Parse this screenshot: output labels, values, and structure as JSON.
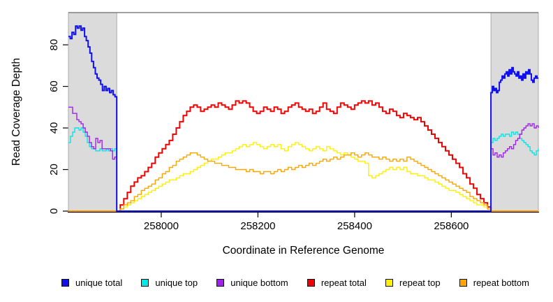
{
  "figure": {
    "background": "#FFFFFF"
  },
  "chart_data": {
    "type": "line",
    "title": "",
    "xlabel": "Coordinate in Reference Genome",
    "ylabel": "Read Coverage Depth",
    "xlim": [
      257808,
      258780
    ],
    "ylim": [
      0,
      95.5
    ],
    "x_ticks": [
      258000,
      258200,
      258400,
      258600
    ],
    "y_ticks": [
      0,
      20,
      40,
      60,
      80
    ],
    "grid": false,
    "legend_position": "bottom",
    "axis_color": "#000000",
    "top_border_color": "#808080",
    "shaded_regions": {
      "color": "#DBDBDB",
      "border": "#ABABAB",
      "regions": [
        [
          257808,
          257908
        ],
        [
          258682,
          258780
        ]
      ]
    },
    "draw_order": [
      3,
      4,
      5,
      1,
      2,
      0
    ],
    "series": [
      {
        "name": "unique total",
        "color": "#1010EE",
        "width": 2,
        "segments": [
          {
            "x0": 257808,
            "dx": 3.7037,
            "values": [
              84,
              83,
              86,
              85,
              89,
              88,
              89,
              87,
              88,
              84,
              82,
              79,
              76,
              72,
              69,
              66,
              64,
              63,
              61,
              58,
              60,
              58,
              59,
              57,
              58,
              56,
              55,
              55
            ]
          },
          {
            "x0": 257908,
            "dx": 774,
            "values": [
              0,
              0
            ]
          },
          {
            "x0": 258682,
            "dx": 2.8824,
            "values": [
              57,
              60,
              58,
              59,
              57,
              58,
              62,
              63,
              65,
              64,
              66,
              67,
              65,
              68,
              66,
              69,
              67,
              66,
              65,
              67,
              64,
              65,
              63,
              66,
              64,
              67,
              66,
              68,
              66,
              63,
              62,
              64,
              65,
              64,
              64
            ]
          }
        ]
      },
      {
        "name": "unique top",
        "color": "#00E8E8",
        "width": 1.4,
        "segments": [
          {
            "x0": 257808,
            "dx": 4.3478,
            "values": [
              33,
              36,
              38,
              40,
              40,
              39,
              40,
              38,
              36,
              33,
              31,
              30,
              30,
              29,
              29,
              30,
              29,
              29,
              30,
              29,
              30,
              29,
              30,
              29
            ]
          },
          {
            "x0": 257908,
            "dx": 774,
            "values": [
              0,
              0
            ]
          },
          {
            "x0": 258682,
            "dx": 4.2609,
            "values": [
              33,
              35,
              34,
              35,
              36,
              37,
              36,
              37,
              37,
              36,
              38,
              37,
              38,
              37,
              35,
              34,
              33,
              32,
              31,
              29,
              28,
              27,
              29,
              30
            ]
          }
        ]
      },
      {
        "name": "unique bottom",
        "color": "#A020F0",
        "width": 1.4,
        "segments": [
          {
            "x0": 257808,
            "dx": 4.3478,
            "values": [
              50,
              50,
              47,
              47,
              44,
              43,
              42,
              40,
              38,
              36,
              33,
              31,
              30,
              35,
              33,
              34,
              30,
              30,
              30,
              30,
              29,
              25,
              26,
              25
            ]
          },
          {
            "x0": 257908,
            "dx": 774,
            "values": [
              0,
              0
            ]
          },
          {
            "x0": 258682,
            "dx": 4.2609,
            "values": [
              30,
              27,
              28,
              26,
              27,
              26,
              28,
              29,
              30,
              31,
              30,
              32,
              34,
              35,
              37,
              39,
              40,
              41,
              42,
              41,
              42,
              40,
              41,
              40
            ]
          }
        ]
      },
      {
        "name": "repeat total",
        "color": "#F40000",
        "width": 2,
        "segments": [
          {
            "x0": 257808,
            "dx": 100,
            "values": [
              0,
              0
            ]
          },
          {
            "x0": 257908,
            "dx": 7.2336,
            "values": [
              0,
              3,
              6,
              9,
              12,
              14,
              16,
              17,
              19,
              21,
              23,
              26,
              28,
              30,
              32,
              34,
              37,
              40,
              43,
              46,
              48,
              50,
              51,
              50,
              48,
              49,
              50,
              51,
              50,
              52,
              51,
              50,
              49,
              51,
              53,
              52,
              53,
              52,
              50,
              48,
              47,
              48,
              50,
              49,
              48,
              50,
              49,
              47,
              48,
              50,
              51,
              52,
              50,
              49,
              48,
              49,
              47,
              48,
              50,
              52,
              49,
              48,
              47,
              50,
              52,
              51,
              50,
              49,
              51,
              52,
              53,
              52,
              53,
              51,
              52,
              50,
              48,
              47,
              49,
              48,
              46,
              45,
              47,
              46,
              45,
              44,
              45,
              43,
              41,
              39,
              37,
              35,
              33,
              31,
              29,
              27,
              25,
              23,
              21,
              18,
              16,
              13,
              11,
              8,
              6,
              4,
              2,
              0
            ]
          },
          {
            "x0": 258682,
            "dx": 98,
            "values": [
              0,
              0
            ]
          }
        ]
      },
      {
        "name": "repeat top",
        "color": "#FFF000",
        "width": 1.4,
        "segments": [
          {
            "x0": 257808,
            "dx": 100,
            "values": [
              0,
              0
            ]
          },
          {
            "x0": 257908,
            "dx": 7.2336,
            "values": [
              0,
              1,
              2,
              3,
              4,
              5,
              6,
              7,
              8,
              9,
              10,
              11,
              12,
              13,
              14,
              15,
              15,
              16,
              17,
              18,
              18,
              19,
              20,
              21,
              22,
              23,
              24,
              25,
              25,
              26,
              27,
              28,
              28,
              29,
              30,
              31,
              32,
              31,
              32,
              33,
              32,
              31,
              30,
              31,
              32,
              31,
              32,
              30,
              29,
              31,
              32,
              33,
              32,
              31,
              30,
              29,
              30,
              31,
              30,
              29,
              31,
              30,
              29,
              28,
              27,
              28,
              27,
              26,
              25,
              24,
              24,
              23,
              17,
              16,
              17,
              18,
              19,
              20,
              21,
              20,
              21,
              20,
              21,
              19,
              18,
              18,
              17,
              17,
              16,
              15,
              15,
              14,
              13,
              12,
              11,
              10,
              10,
              9,
              8,
              7,
              6,
              5,
              4,
              3,
              3,
              2,
              1,
              0
            ]
          },
          {
            "x0": 258682,
            "dx": 98,
            "values": [
              0,
              0
            ]
          }
        ]
      },
      {
        "name": "repeat bottom",
        "color": "#FFA500",
        "width": 1.4,
        "segments": [
          {
            "x0": 257808,
            "dx": 100,
            "values": [
              0,
              0
            ]
          },
          {
            "x0": 257908,
            "dx": 7.2336,
            "values": [
              0,
              1,
              3,
              4,
              5,
              7,
              8,
              10,
              11,
              12,
              13,
              15,
              16,
              18,
              19,
              21,
              22,
              24,
              25,
              26,
              27,
              28,
              28,
              27,
              26,
              25,
              24,
              24,
              23,
              23,
              22,
              22,
              21,
              21,
              20,
              20,
              20,
              19,
              20,
              19,
              19,
              18,
              19,
              19,
              18,
              19,
              20,
              19,
              20,
              21,
              20,
              21,
              22,
              21,
              22,
              23,
              22,
              23,
              24,
              25,
              24,
              25,
              26,
              25,
              26,
              27,
              27,
              28,
              27,
              26,
              27,
              28,
              27,
              26,
              26,
              25,
              26,
              25,
              24,
              25,
              24,
              25,
              24,
              26,
              25,
              24,
              23,
              22,
              21,
              20,
              19,
              18,
              17,
              16,
              15,
              14,
              13,
              12,
              11,
              10,
              9,
              7,
              6,
              5,
              4,
              3,
              1,
              0
            ]
          },
          {
            "x0": 258682,
            "dx": 98,
            "values": [
              0,
              0
            ]
          }
        ]
      }
    ]
  }
}
